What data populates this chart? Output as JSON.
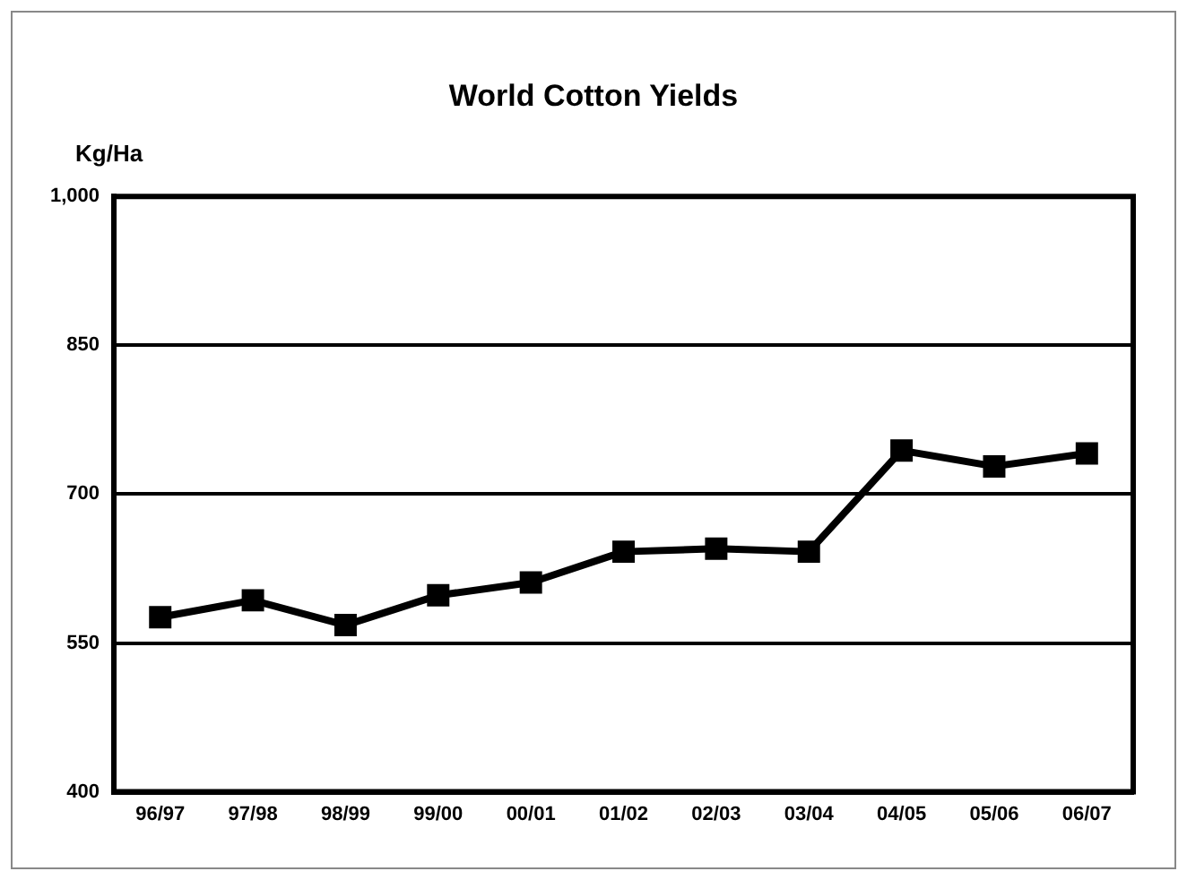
{
  "chart_data": {
    "type": "line",
    "title": "World Cotton Yields",
    "ylabel": "Kg/Ha",
    "categories": [
      "96/97",
      "97/98",
      "98/99",
      "99/00",
      "00/01",
      "01/02",
      "02/03",
      "03/04",
      "04/05",
      "05/06",
      "06/07"
    ],
    "series": [
      {
        "color": "#000000",
        "values": [
          576,
          593,
          568,
          598,
          611,
          642,
          645,
          642,
          744,
          728,
          741
        ]
      }
    ],
    "ylim": [
      400,
      1000
    ],
    "yticks": [
      400,
      {
        "value": 550,
        "label": "550"
      },
      700,
      850,
      {
        "value": 1000,
        "label": "1,000"
      }
    ],
    "grid": "y",
    "legend": false,
    "marker": "square",
    "line_style": "solid"
  }
}
